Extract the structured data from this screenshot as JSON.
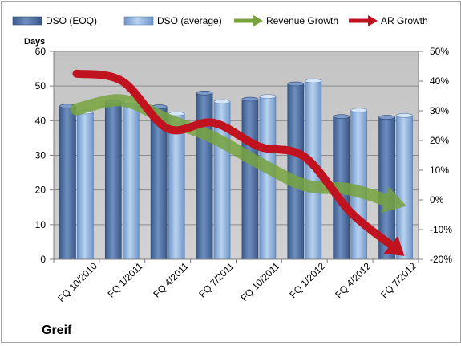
{
  "chart_data": {
    "type": "bar",
    "company_label": "Greif",
    "ylabel": "Days",
    "ylim": [
      0,
      60
    ],
    "y_ticks": [
      "0",
      "10",
      "20",
      "30",
      "40",
      "50",
      "60"
    ],
    "y2lim": [
      -20,
      50
    ],
    "y2_ticks": [
      "-20%",
      "-10%",
      "0%",
      "10%",
      "20%",
      "30%",
      "40%",
      "50%"
    ],
    "categories": [
      "FQ 10/2010",
      "FQ 1/2011",
      "FQ 4/2011",
      "FQ 7/2011",
      "FQ 10/2011",
      "FQ 1/2012",
      "FQ 4/2012",
      "FQ 7/2012"
    ],
    "series": [
      {
        "name": "DSO (EOQ)",
        "kind": "bar",
        "axis": "left",
        "color": "#4f6fa0",
        "values": [
          44.2,
          45.5,
          44.0,
          48.0,
          46.2,
          50.6,
          41.2,
          41.0
        ]
      },
      {
        "name": "DSO (average)",
        "kind": "bar",
        "axis": "left",
        "color": "#8fb3e0",
        "values": [
          42.5,
          45.5,
          42.0,
          45.5,
          47.0,
          51.5,
          43.0,
          41.5
        ]
      },
      {
        "name": "Revenue Growth",
        "kind": "arrow",
        "axis": "right",
        "color": "#77a33e",
        "values": [
          30.5,
          33.5,
          27.0,
          21.0,
          12.5,
          5.0,
          3.5,
          -1.0
        ]
      },
      {
        "name": "AR Growth",
        "kind": "arrow",
        "axis": "right",
        "color": "#c1121f",
        "values": [
          42.5,
          40.0,
          24.0,
          26.0,
          18.0,
          14.5,
          -4.0,
          -16.5
        ]
      }
    ],
    "grid": true,
    "legend_position": "top"
  }
}
